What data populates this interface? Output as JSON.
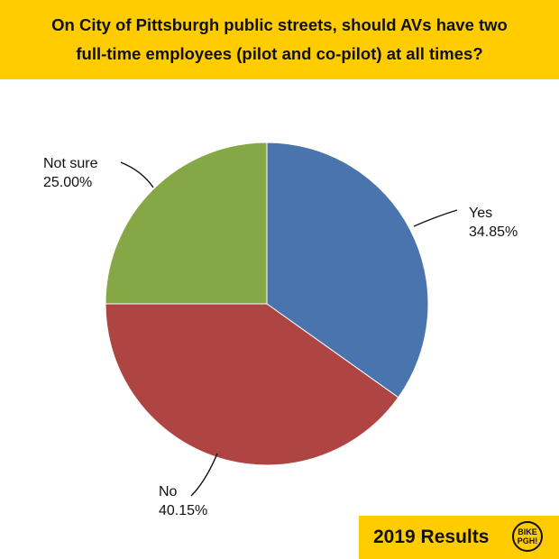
{
  "header": {
    "title_line1": "On City of Pittsburgh public streets, should AVs have two",
    "title_line2": "full-time employees (pilot and co-pilot) at all times?",
    "background_color": "#FFCC00"
  },
  "footer": {
    "badge_label": "2019 Results",
    "badge_color": "#FFCC00",
    "logo_text_top": "BIKE",
    "logo_text_bottom": "PGH!"
  },
  "chart_data": {
    "type": "pie",
    "title": "On City of Pittsburgh public streets, should AVs have two full-time employees (pilot and co-pilot) at all times?",
    "slices": [
      {
        "label": "Yes",
        "percent_label": "34.85%",
        "value": 34.85,
        "color": "#4A74AE"
      },
      {
        "label": "No",
        "percent_label": "40.15%",
        "value": 40.15,
        "color": "#AE4542"
      },
      {
        "label": "Not sure",
        "percent_label": "25.00%",
        "value": 25.0,
        "color": "#86A746"
      }
    ]
  }
}
